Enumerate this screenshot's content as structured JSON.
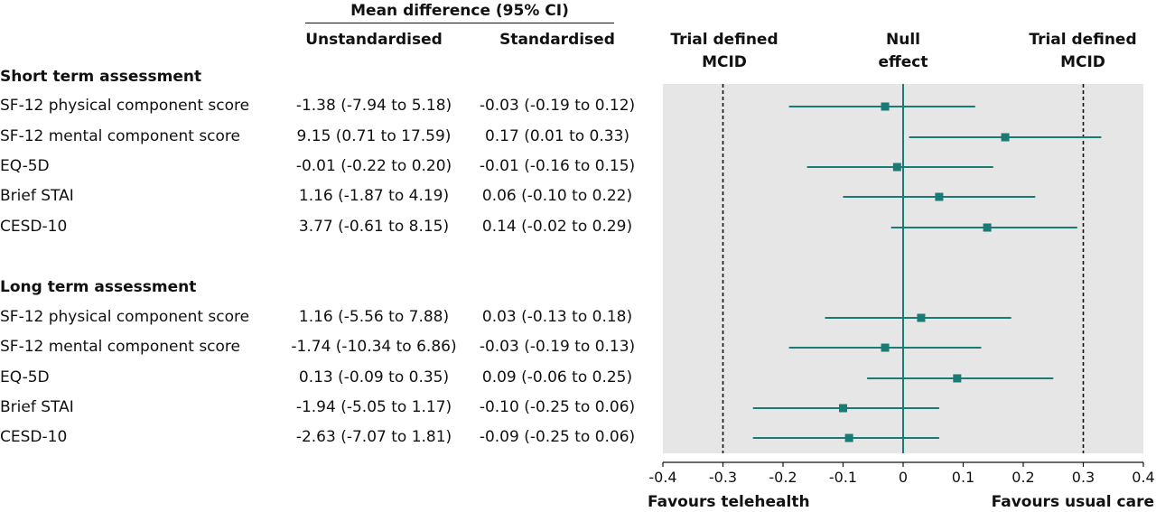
{
  "table": {
    "group_header": "Mean difference (95% CI)",
    "col_unstd": "Unstandardised",
    "col_std": "Standardised"
  },
  "plot_headers": {
    "left_mcid": [
      "Trial defined",
      "MCID"
    ],
    "null": [
      "Null",
      "effect"
    ],
    "right_mcid": [
      "Trial defined",
      "MCID"
    ]
  },
  "sections": [
    {
      "title": "Short term assessment",
      "rows": [
        {
          "label": "SF-12 physical component score",
          "unstd": "-1.38 (-7.94 to 5.18)",
          "std": "-0.03 (-0.19 to 0.12)"
        },
        {
          "label": "SF-12 mental component score",
          "unstd": "9.15 (0.71 to 17.59)",
          "std": "0.17 (0.01 to 0.33)"
        },
        {
          "label": "EQ-5D",
          "unstd": "-0.01 (-0.22 to 0.20)",
          "std": "-0.01 (-0.16 to 0.15)"
        },
        {
          "label": "Brief STAI",
          "unstd": "1.16 (-1.87 to 4.19)",
          "std": "0.06 (-0.10 to 0.22)"
        },
        {
          "label": "CESD-10",
          "unstd": "3.77 (-0.61 to 8.15)",
          "std": "0.14 (-0.02 to 0.29)"
        }
      ]
    },
    {
      "title": "Long term assessment",
      "rows": [
        {
          "label": "SF-12 physical component score",
          "unstd": "1.16 (-5.56 to 7.88)",
          "std": "0.03 (-0.13 to 0.18)"
        },
        {
          "label": "SF-12 mental component score",
          "unstd": "-1.74 (-10.34 to 6.86)",
          "std": "-0.03 (-0.19 to 0.13)"
        },
        {
          "label": "EQ-5D",
          "unstd": "0.13 (-0.09 to 0.35)",
          "std": "0.09 (-0.06 to 0.25)"
        },
        {
          "label": "Brief STAI",
          "unstd": "-1.94 (-5.05 to 1.17)",
          "std": "-0.10 (-0.25 to 0.06)"
        },
        {
          "label": "CESD-10",
          "unstd": "-2.63 (-7.07 to 1.81)",
          "std": "-0.09 (-0.25 to 0.06)"
        }
      ]
    }
  ],
  "axis": {
    "favours_left": "Favours telehealth",
    "favours_right": "Favours usual care"
  },
  "colors": {
    "marker": "#1a7a74",
    "panel_bg": "#e6e6e6",
    "reference_line": "#111111"
  },
  "chart_data": {
    "type": "forest",
    "xlim": [
      -0.4,
      0.4
    ],
    "xticks": [
      -0.4,
      -0.3,
      -0.2,
      -0.1,
      0,
      0.1,
      0.2,
      0.3,
      0.4
    ],
    "xtick_labels": [
      "-0.4",
      "-0.3",
      "-0.2",
      "-0.1",
      "0",
      "0.1",
      "0.2",
      "0.3",
      "0.4"
    ],
    "reference_lines": {
      "null": 0,
      "mcid": [
        -0.3,
        0.3
      ]
    },
    "grid": false,
    "series": [
      {
        "name": "Short term assessment",
        "points": [
          {
            "outcome": "SF-12 physical component score",
            "estimate": -0.03,
            "lower": -0.19,
            "upper": 0.12
          },
          {
            "outcome": "SF-12 mental component score",
            "estimate": 0.17,
            "lower": 0.01,
            "upper": 0.33
          },
          {
            "outcome": "EQ-5D",
            "estimate": -0.01,
            "lower": -0.16,
            "upper": 0.15
          },
          {
            "outcome": "Brief STAI",
            "estimate": 0.06,
            "lower": -0.1,
            "upper": 0.22
          },
          {
            "outcome": "CESD-10",
            "estimate": 0.14,
            "lower": -0.02,
            "upper": 0.29
          }
        ]
      },
      {
        "name": "Long term assessment",
        "points": [
          {
            "outcome": "SF-12 physical component score",
            "estimate": 0.03,
            "lower": -0.13,
            "upper": 0.18
          },
          {
            "outcome": "SF-12 mental component score",
            "estimate": -0.03,
            "lower": -0.19,
            "upper": 0.13
          },
          {
            "outcome": "EQ-5D",
            "estimate": 0.09,
            "lower": -0.06,
            "upper": 0.25
          },
          {
            "outcome": "Brief STAI",
            "estimate": -0.1,
            "lower": -0.25,
            "upper": 0.06
          },
          {
            "outcome": "CESD-10",
            "estimate": -0.09,
            "lower": -0.25,
            "upper": 0.06
          }
        ]
      }
    ]
  }
}
